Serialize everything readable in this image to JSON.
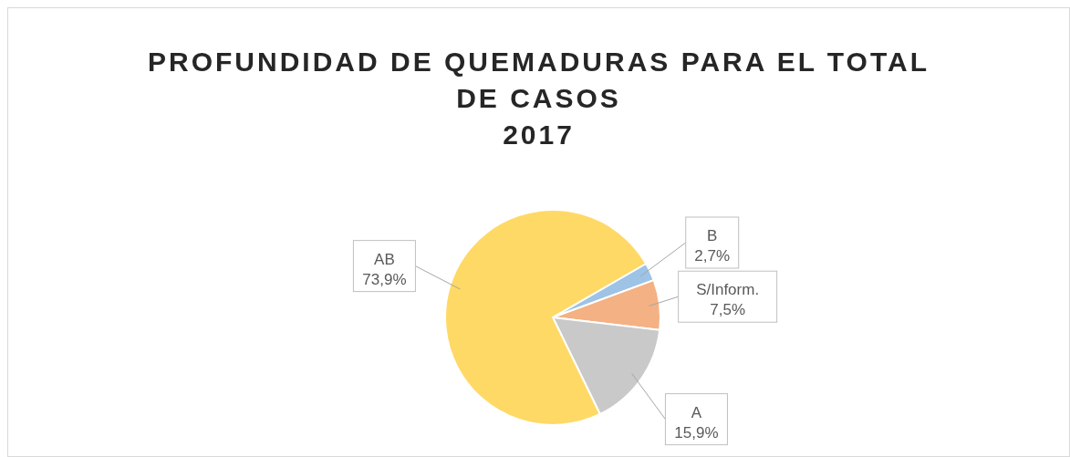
{
  "chart_data": {
    "type": "pie",
    "title": "PROFUNDIDAD DE QUEMADURAS PARA EL TOTAL DE CASOS",
    "subtitle": "2017",
    "categories": [
      "B",
      "S/Inform.",
      "A",
      "AB"
    ],
    "values": [
      2.7,
      7.5,
      15.9,
      73.9
    ],
    "colors": [
      "#9dc3e6",
      "#f4b183",
      "#c9c9c9",
      "#ffd966"
    ],
    "value_labels": [
      "2,7%",
      "7,5%",
      "15,9%",
      "73,9%"
    ],
    "legend": false
  }
}
